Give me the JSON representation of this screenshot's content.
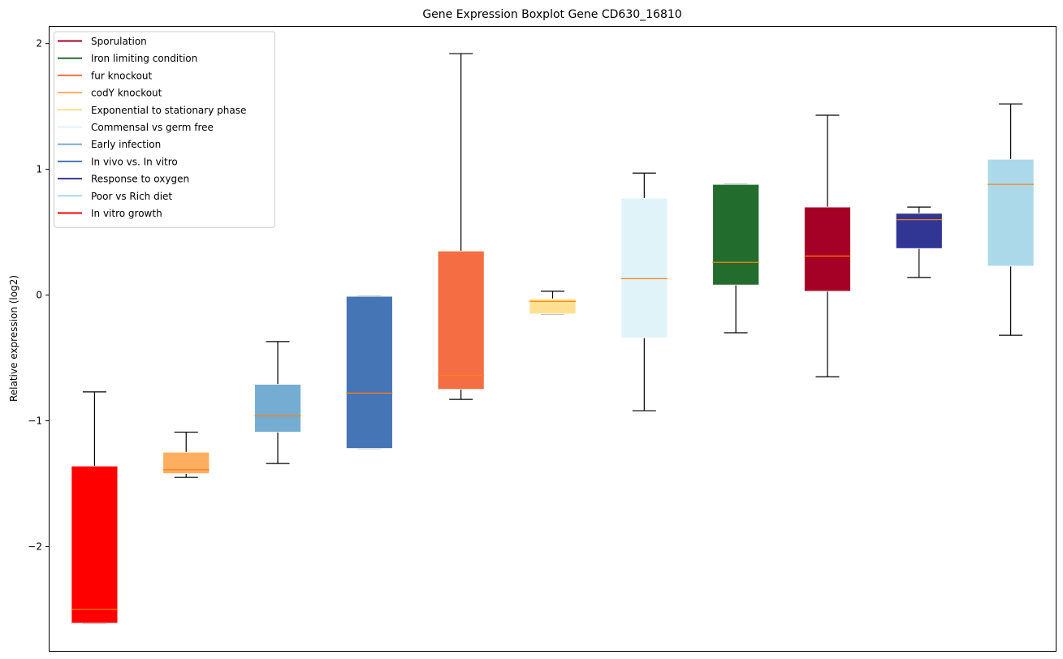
{
  "chart_data": {
    "type": "box",
    "title": "Gene Expression Boxplot Gene CD630_16810",
    "xlabel": "",
    "ylabel": "Relative expression (log2)",
    "ylim": [
      -2.83,
      2.14
    ],
    "yticks": [
      -2,
      -1,
      0,
      1,
      2
    ],
    "ytick_labels": [
      "−2",
      "−1",
      "0",
      "1",
      "2"
    ],
    "grid": false,
    "legend_position": "top-left",
    "median_color": "#ff7f0e",
    "whisker_color": "#000000",
    "series": [
      {
        "name": "In vitro growth",
        "color": "#ff0000",
        "whisker_low": -2.61,
        "q1": -2.61,
        "median": -2.5,
        "q3": -1.36,
        "whisker_high": -0.77
      },
      {
        "name": "codY knockout",
        "color": "#fdae61",
        "whisker_low": -1.45,
        "q1": -1.42,
        "median": -1.39,
        "q3": -1.25,
        "whisker_high": -1.09
      },
      {
        "name": "Early infection",
        "color": "#74add1",
        "whisker_low": -1.34,
        "q1": -1.09,
        "median": -0.96,
        "q3": -0.71,
        "whisker_high": -0.37
      },
      {
        "name": "In vivo vs. In vitro",
        "color": "#4575b4",
        "whisker_low": -1.22,
        "q1": -1.22,
        "median": -0.78,
        "q3": -0.01,
        "whisker_high": -0.01
      },
      {
        "name": "fur knockout",
        "color": "#f46d43",
        "whisker_low": -0.83,
        "q1": -0.75,
        "median": -0.64,
        "q3": 0.35,
        "whisker_high": 1.92
      },
      {
        "name": "Exponential to stationary phase",
        "color": "#fee090",
        "whisker_low": -0.15,
        "q1": -0.15,
        "median": -0.05,
        "q3": -0.03,
        "whisker_high": 0.03
      },
      {
        "name": "Commensal vs germ free",
        "color": "#e0f3f8",
        "whisker_low": -0.92,
        "q1": -0.34,
        "median": 0.13,
        "q3": 0.77,
        "whisker_high": 0.97
      },
      {
        "name": "Iron limiting condition",
        "color": "#226d2e",
        "whisker_low": -0.3,
        "q1": 0.08,
        "median": 0.26,
        "q3": 0.88,
        "whisker_high": 0.88
      },
      {
        "name": "Sporulation",
        "color": "#a50026",
        "whisker_low": -0.65,
        "q1": 0.03,
        "median": 0.31,
        "q3": 0.7,
        "whisker_high": 1.43
      },
      {
        "name": "Response to oxygen",
        "color": "#313695",
        "whisker_low": 0.14,
        "q1": 0.37,
        "median": 0.6,
        "q3": 0.65,
        "whisker_high": 0.7
      },
      {
        "name": "Poor vs Rich diet",
        "color": "#abd9e9",
        "whisker_low": -0.32,
        "q1": 0.23,
        "median": 0.88,
        "q3": 1.08,
        "whisker_high": 1.52
      }
    ],
    "legend": [
      {
        "label": "Sporulation",
        "color": "#a50026"
      },
      {
        "label": "Iron limiting condition",
        "color": "#226d2e"
      },
      {
        "label": "fur knockout",
        "color": "#f46d43"
      },
      {
        "label": "codY knockout",
        "color": "#fdae61"
      },
      {
        "label": "Exponential to stationary phase",
        "color": "#fee090"
      },
      {
        "label": "Commensal vs germ free",
        "color": "#e0f3f8"
      },
      {
        "label": "Early infection",
        "color": "#74add1"
      },
      {
        "label": "In vivo vs. In vitro",
        "color": "#4575b4"
      },
      {
        "label": "Response to oxygen",
        "color": "#313695"
      },
      {
        "label": "Poor vs Rich diet",
        "color": "#abd9e9"
      },
      {
        "label": "In vitro growth",
        "color": "#ff0000"
      }
    ]
  }
}
